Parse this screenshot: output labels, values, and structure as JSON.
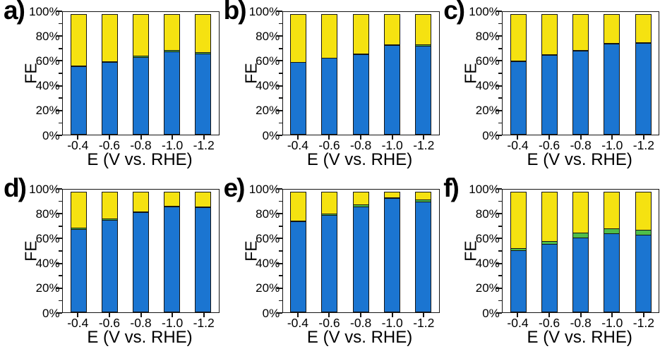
{
  "figure": {
    "background": "#ffffff",
    "ylabel": "FE",
    "xlabel": "E (V vs. RHE)",
    "ytick_labels": [
      "0%",
      "20%",
      "40%",
      "60%",
      "80%",
      "100%"
    ],
    "ytick_values": [
      0,
      20,
      40,
      60,
      80,
      100
    ],
    "yminor_values": [
      10,
      30,
      50,
      70,
      90
    ],
    "colors": {
      "blue": "#1B75D1",
      "green": "#4FBE4A",
      "yellow": "#F5E211",
      "axis": "#141414",
      "text": "#000000"
    }
  },
  "chart_data": [
    {
      "panel": "a",
      "panel_label": "a)",
      "type": "bar",
      "stacked": true,
      "title": "",
      "xlabel": "E (V vs. RHE)",
      "ylabel": "FE",
      "ylim": [
        0,
        100
      ],
      "legend": "none",
      "grid": false,
      "categories": [
        "-0.4",
        "-0.6",
        "-0.8",
        "-1.0",
        "-1.2"
      ],
      "series": [
        {
          "name": "blue",
          "color": "#1B75D1",
          "values": [
            56,
            59,
            63.5,
            68,
            66
          ]
        },
        {
          "name": "green",
          "color": "#4FBE4A",
          "values": [
            1,
            1.5,
            1.5,
            2,
            2
          ]
        },
        {
          "name": "yellow",
          "color": "#F5E211",
          "values": [
            43,
            39.5,
            35,
            30,
            32
          ]
        }
      ]
    },
    {
      "panel": "b",
      "panel_label": "b)",
      "type": "bar",
      "stacked": true,
      "title": "",
      "xlabel": "E (V vs. RHE)",
      "ylabel": "FE",
      "ylim": [
        0,
        100
      ],
      "legend": "none",
      "grid": false,
      "categories": [
        "-0.4",
        "-0.6",
        "-0.8",
        "-1.0",
        "-1.2"
      ],
      "series": [
        {
          "name": "blue",
          "color": "#1B75D1",
          "values": [
            59,
            62.5,
            65.5,
            73,
            72.5
          ]
        },
        {
          "name": "green",
          "color": "#4FBE4A",
          "values": [
            1,
            1,
            1.5,
            1.5,
            2
          ]
        },
        {
          "name": "yellow",
          "color": "#F5E211",
          "values": [
            40,
            36.5,
            33,
            25.5,
            25.5
          ]
        }
      ]
    },
    {
      "panel": "c",
      "panel_label": "c)",
      "type": "bar",
      "stacked": true,
      "title": "",
      "xlabel": "E (V vs. RHE)",
      "ylabel": "FE",
      "ylim": [
        0,
        100
      ],
      "legend": "none",
      "grid": false,
      "categories": [
        "-0.4",
        "-0.6",
        "-0.8",
        "-1.0",
        "-1.2"
      ],
      "series": [
        {
          "name": "blue",
          "color": "#1B75D1",
          "values": [
            60,
            65,
            68.5,
            74,
            74.5
          ]
        },
        {
          "name": "green",
          "color": "#4FBE4A",
          "values": [
            1,
            1.5,
            1.5,
            1.5,
            1.5
          ]
        },
        {
          "name": "yellow",
          "color": "#F5E211",
          "values": [
            39,
            33.5,
            30,
            24.5,
            24
          ]
        }
      ]
    },
    {
      "panel": "d",
      "panel_label": "d)",
      "type": "bar",
      "stacked": true,
      "title": "",
      "xlabel": "E (V vs. RHE)",
      "ylabel": "FE",
      "ylim": [
        0,
        100
      ],
      "legend": "none",
      "grid": false,
      "categories": [
        "-0.4",
        "-0.6",
        "-0.8",
        "-1.0",
        "-1.2"
      ],
      "series": [
        {
          "name": "blue",
          "color": "#1B75D1",
          "values": [
            68,
            75.5,
            81.5,
            86,
            85.5
          ]
        },
        {
          "name": "green",
          "color": "#4FBE4A",
          "values": [
            1.5,
            1.5,
            1.5,
            1.5,
            1.5
          ]
        },
        {
          "name": "yellow",
          "color": "#F5E211",
          "values": [
            30.5,
            23,
            17,
            12.5,
            13
          ]
        }
      ]
    },
    {
      "panel": "e",
      "panel_label": "e)",
      "type": "bar",
      "stacked": true,
      "title": "",
      "xlabel": "E (V vs. RHE)",
      "ylabel": "FE",
      "ylim": [
        0,
        100
      ],
      "legend": "none",
      "grid": false,
      "categories": [
        "-0.4",
        "-0.6",
        "-0.8",
        "-1.0",
        "-1.2"
      ],
      "series": [
        {
          "name": "blue",
          "color": "#1B75D1",
          "values": [
            74,
            79.5,
            86.5,
            93,
            90.5
          ]
        },
        {
          "name": "green",
          "color": "#4FBE4A",
          "values": [
            1.5,
            1.5,
            2,
            1.5,
            2
          ]
        },
        {
          "name": "yellow",
          "color": "#F5E211",
          "values": [
            24.5,
            19,
            11.5,
            5.5,
            7.5
          ]
        }
      ]
    },
    {
      "panel": "f",
      "panel_label": "f)",
      "type": "bar",
      "stacked": true,
      "title": "",
      "xlabel": "E (V vs. RHE)",
      "ylabel": "FE",
      "ylim": [
        0,
        100
      ],
      "legend": "none",
      "grid": false,
      "categories": [
        "-0.4",
        "-0.6",
        "-0.8",
        "-1.0",
        "-1.2"
      ],
      "series": [
        {
          "name": "blue",
          "color": "#1B75D1",
          "values": [
            50.5,
            55.5,
            61,
            64.5,
            63
          ]
        },
        {
          "name": "green",
          "color": "#4FBE4A",
          "values": [
            2.5,
            3.5,
            4.5,
            4.5,
            5
          ]
        },
        {
          "name": "yellow",
          "color": "#F5E211",
          "values": [
            47,
            41,
            34.5,
            31,
            32
          ]
        }
      ]
    }
  ]
}
